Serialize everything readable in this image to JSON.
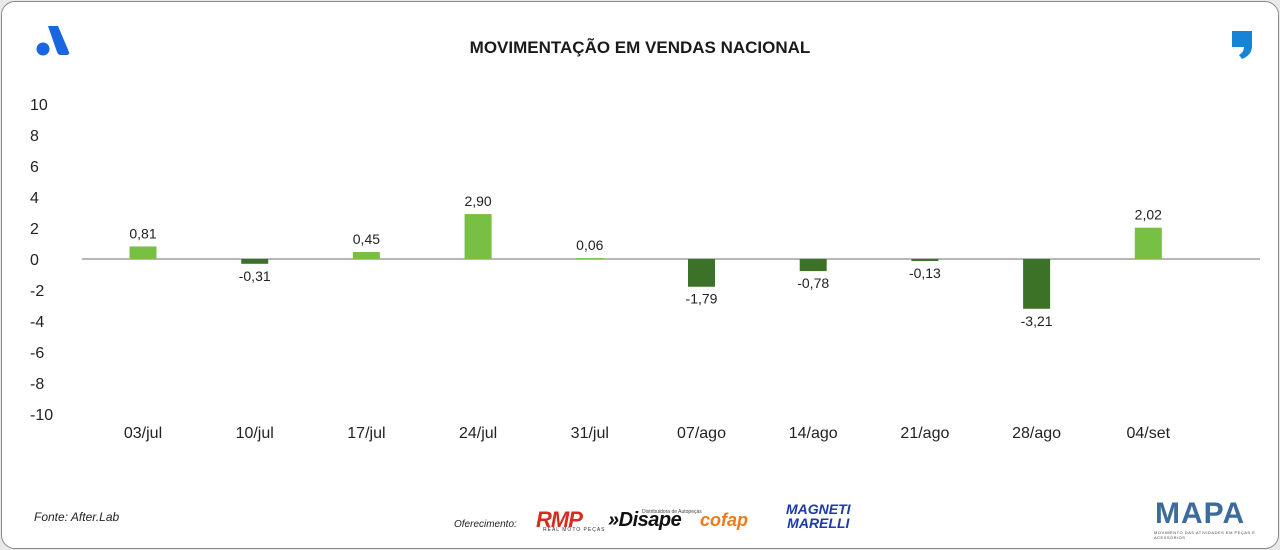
{
  "title": "MOVIMENTAÇÃO EM VENDAS NACIONAL",
  "source": "Fonte: After.Lab",
  "offered_by": "Oferecimento:",
  "sponsors": {
    "rmp": "RMP",
    "rmp_sub": "REAL MOTO PEÇAS",
    "disape": "»Disape",
    "disape_sub": "Distribuidora de Autopeças",
    "cofap": "cofap",
    "magneti_1": "MAGNETI",
    "magneti_2": "MARELLI"
  },
  "brand": {
    "mapa": "MAPA",
    "mapa_sub": "MOVIMENTO DAS ATIVIDADES EM PEÇAS E ACESSÓRIOS"
  },
  "colors": {
    "positive": "#77c043",
    "negative": "#3c7227",
    "axis": "#8c8c8c",
    "brand_blue": "#1967e0",
    "comma_blue": "#1684d6"
  },
  "chart_data": {
    "type": "bar",
    "title": "MOVIMENTAÇÃO EM VENDAS NACIONAL",
    "categories": [
      "03/jul",
      "10/jul",
      "17/jul",
      "24/jul",
      "31/jul",
      "07/ago",
      "14/ago",
      "21/ago",
      "28/ago",
      "04/set"
    ],
    "values": [
      0.81,
      -0.31,
      0.45,
      2.9,
      0.06,
      -1.79,
      -0.78,
      -0.13,
      -3.21,
      2.02
    ],
    "value_labels": [
      "0,81",
      "-0,31",
      "0,45",
      "2,90",
      "0,06",
      "-1,79",
      "-0,78",
      "-0,13",
      "-3,21",
      "2,02"
    ],
    "yticks": [
      10,
      8,
      6,
      4,
      2,
      0,
      -2,
      -4,
      -6,
      -8,
      -10
    ],
    "ylim": [
      -10,
      10
    ],
    "xlabel": "",
    "ylabel": "",
    "grid": false,
    "legend": "none"
  }
}
